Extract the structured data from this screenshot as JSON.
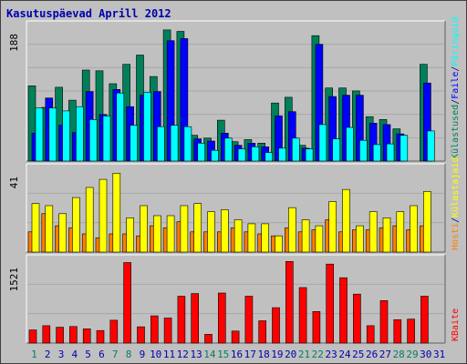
{
  "title": "Kasutuspäevad Aprill 2012",
  "colors": {
    "background": "#c0c0c0",
    "plot_bg": "#c0c0c0",
    "grid": "#a8a8a8",
    "visits": "#00805a",
    "files": "#0000ff",
    "pages": "#00ffff",
    "sites": "#ffff00",
    "hits": "#ff8000",
    "kbytes": "#ff0000",
    "weekend_label": "#008060",
    "weekday_label": "#0000b0"
  },
  "chart_data": [
    {
      "type": "bar",
      "panel": "top",
      "ymax_label": "188",
      "ylim": [
        0,
        188
      ],
      "grid": true,
      "categories": [
        "1",
        "2",
        "3",
        "4",
        "5",
        "6",
        "7",
        "8",
        "9",
        "10",
        "11",
        "12",
        "13",
        "14",
        "15",
        "16",
        "17",
        "18",
        "19",
        "20",
        "21",
        "22",
        "23",
        "24",
        "25",
        "26",
        "27",
        "28",
        "29",
        "30",
        "31"
      ],
      "legend": [
        {
          "label": "Külastused",
          "color": "#00805a"
        },
        {
          "label": "/",
          "color": "#000080"
        },
        {
          "label": "Faile",
          "color": "#0000ff"
        },
        {
          "label": "/",
          "color": "#000080"
        },
        {
          "label": "Päringuid",
          "color": "#00ffff"
        }
      ],
      "series": [
        {
          "name": "Külastused",
          "values": [
            105,
            75,
            103,
            85,
            127,
            126,
            108,
            135,
            148,
            118,
            183,
            181,
            36,
            32,
            57,
            27,
            30,
            25,
            81,
            89,
            22,
            175,
            102,
            102,
            98,
            62,
            58,
            45,
            0,
            135,
            0
          ]
        },
        {
          "name": "Faile",
          "values": [
            39,
            88,
            50,
            40,
            97,
            65,
            100,
            76,
            92,
            97,
            168,
            171,
            31,
            28,
            39,
            22,
            25,
            20,
            63,
            69,
            18,
            163,
            90,
            92,
            92,
            53,
            51,
            38,
            0,
            109,
            0
          ]
        },
        {
          "name": "Päringuid",
          "values": [
            74,
            74,
            70,
            76,
            58,
            63,
            95,
            50,
            96,
            48,
            50,
            48,
            25,
            15,
            32,
            17,
            20,
            12,
            18,
            32,
            17,
            51,
            31,
            47,
            29,
            23,
            24,
            36,
            0,
            42,
            0
          ]
        }
      ]
    },
    {
      "type": "bar",
      "panel": "middle",
      "ymax_label": "41",
      "ylim": [
        0,
        41
      ],
      "grid": true,
      "categories": [
        "1",
        "2",
        "3",
        "4",
        "5",
        "6",
        "7",
        "8",
        "9",
        "10",
        "11",
        "12",
        "13",
        "14",
        "15",
        "16",
        "17",
        "18",
        "19",
        "20",
        "21",
        "22",
        "23",
        "24",
        "25",
        "26",
        "27",
        "28",
        "29",
        "30",
        "31"
      ],
      "legend": [
        {
          "label": "Hosti",
          "color": "#ff8000"
        },
        {
          "label": "/",
          "color": "#000080"
        },
        {
          "label": "Külastajaid",
          "color": "#ffff00"
        }
      ],
      "series": [
        {
          "name": "Hosti",
          "values": [
            10,
            19,
            13,
            12,
            9,
            7,
            9,
            9,
            8,
            13,
            12,
            15,
            10,
            10,
            10,
            12,
            10,
            9,
            8,
            12,
            10,
            11,
            16,
            10,
            11,
            11,
            12,
            13,
            11,
            13,
            0
          ]
        },
        {
          "name": "Külastajaid",
          "values": [
            24,
            23,
            19,
            27,
            32,
            36,
            39,
            17,
            23,
            18,
            18,
            23,
            24,
            20,
            21,
            16,
            14,
            14,
            8,
            22,
            16,
            13,
            25,
            31,
            13,
            20,
            17,
            20,
            23,
            30,
            0
          ]
        }
      ]
    },
    {
      "type": "bar",
      "panel": "bottom",
      "ymax_label": "1521",
      "ylim": [
        0,
        1521
      ],
      "grid": true,
      "categories": [
        "1",
        "2",
        "3",
        "4",
        "5",
        "6",
        "7",
        "8",
        "9",
        "10",
        "11",
        "12",
        "13",
        "14",
        "15",
        "16",
        "17",
        "18",
        "19",
        "20",
        "21",
        "22",
        "23",
        "24",
        "25",
        "26",
        "27",
        "28",
        "29",
        "30",
        "31"
      ],
      "legend": [
        {
          "label": "KBaite",
          "color": "#ff0000"
        }
      ],
      "series": [
        {
          "name": "KBaite",
          "values": [
            240,
            320,
            290,
            305,
            260,
            230,
            420,
            1480,
            300,
            500,
            460,
            860,
            910,
            160,
            920,
            220,
            860,
            410,
            650,
            1500,
            1020,
            580,
            1450,
            1200,
            900,
            320,
            780,
            430,
            440,
            860,
            0
          ]
        }
      ]
    }
  ],
  "day_labels": [
    {
      "text": "1",
      "weekend": true
    },
    {
      "text": "2",
      "weekend": false
    },
    {
      "text": "3",
      "weekend": false
    },
    {
      "text": "4",
      "weekend": false
    },
    {
      "text": "5",
      "weekend": false
    },
    {
      "text": "6",
      "weekend": false
    },
    {
      "text": "7",
      "weekend": true
    },
    {
      "text": "8",
      "weekend": true
    },
    {
      "text": "9",
      "weekend": false
    },
    {
      "text": "10",
      "weekend": false
    },
    {
      "text": "11",
      "weekend": false
    },
    {
      "text": "12",
      "weekend": false
    },
    {
      "text": "13",
      "weekend": false
    },
    {
      "text": "14",
      "weekend": true
    },
    {
      "text": "15",
      "weekend": true
    },
    {
      "text": "16",
      "weekend": false
    },
    {
      "text": "17",
      "weekend": false
    },
    {
      "text": "18",
      "weekend": false
    },
    {
      "text": "19",
      "weekend": false
    },
    {
      "text": "20",
      "weekend": false
    },
    {
      "text": "21",
      "weekend": true
    },
    {
      "text": "22",
      "weekend": true
    },
    {
      "text": "23",
      "weekend": false
    },
    {
      "text": "24",
      "weekend": false
    },
    {
      "text": "25",
      "weekend": false
    },
    {
      "text": "26",
      "weekend": false
    },
    {
      "text": "27",
      "weekend": false
    },
    {
      "text": "28",
      "weekend": true
    },
    {
      "text": "29",
      "weekend": true
    },
    {
      "text": "30",
      "weekend": false
    },
    {
      "text": "31",
      "weekend": false
    }
  ]
}
